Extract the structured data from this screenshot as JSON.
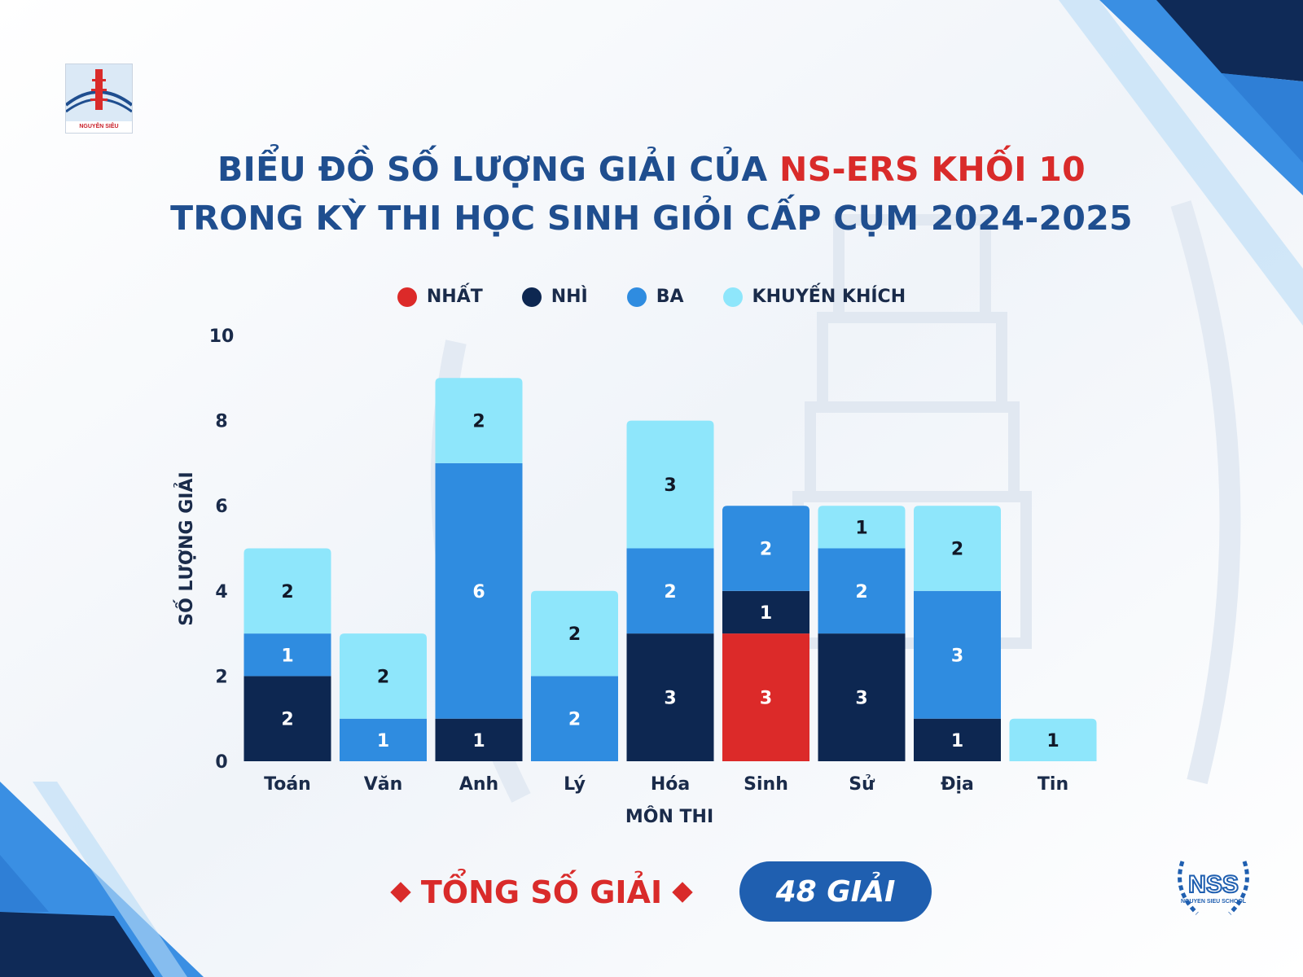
{
  "header": {
    "title_line1_main": "BIỂU ĐỒ SỐ LƯỢNG GIẢI CỦA ",
    "title_line1_accent": "NS-ERS KHỐI 10",
    "title_line2": "TRONG KỲ THI HỌC SINH GIỎI CẤP CỤM 2024-2025",
    "school_logo_text": "NGUYỄN SIÊU",
    "nss_logo_text": "NSS",
    "nss_logo_sub": "NGUYEN SIEU SCHOOL"
  },
  "colors": {
    "accent_red": "#d92b2a",
    "title_blue": "#1f4e8f",
    "pill_blue": "#1f5fb0"
  },
  "chart_data": {
    "type": "bar",
    "stacked": true,
    "title": "",
    "xlabel": "MÔN THI",
    "ylabel": "SỐ LƯỢNG GIẢI",
    "ylim": [
      0,
      10
    ],
    "yticks": [
      0,
      2,
      4,
      6,
      8,
      10
    ],
    "grid": false,
    "legend_position": "top-center",
    "categories": [
      "Toán",
      "Văn",
      "Anh",
      "Lý",
      "Hóa",
      "Sinh",
      "Sử",
      "Địa",
      "Tin"
    ],
    "series": [
      {
        "name": "NHẤT",
        "color": "#dc2a29",
        "values": [
          0,
          0,
          0,
          0,
          0,
          3,
          0,
          0,
          0
        ]
      },
      {
        "name": "NHÌ",
        "color": "#0d2751",
        "values": [
          2,
          0,
          1,
          0,
          3,
          1,
          3,
          1,
          0
        ]
      },
      {
        "name": "BA",
        "color": "#2f8ce0",
        "values": [
          1,
          1,
          6,
          2,
          2,
          2,
          2,
          3,
          0
        ]
      },
      {
        "name": "KHUYẾN KHÍCH",
        "color": "#8ee6fb",
        "values": [
          2,
          2,
          2,
          2,
          3,
          0,
          1,
          2,
          1
        ]
      }
    ]
  },
  "summary": {
    "total_label": "TỔNG SỐ GIẢI",
    "total_value": "48 GIẢI"
  }
}
